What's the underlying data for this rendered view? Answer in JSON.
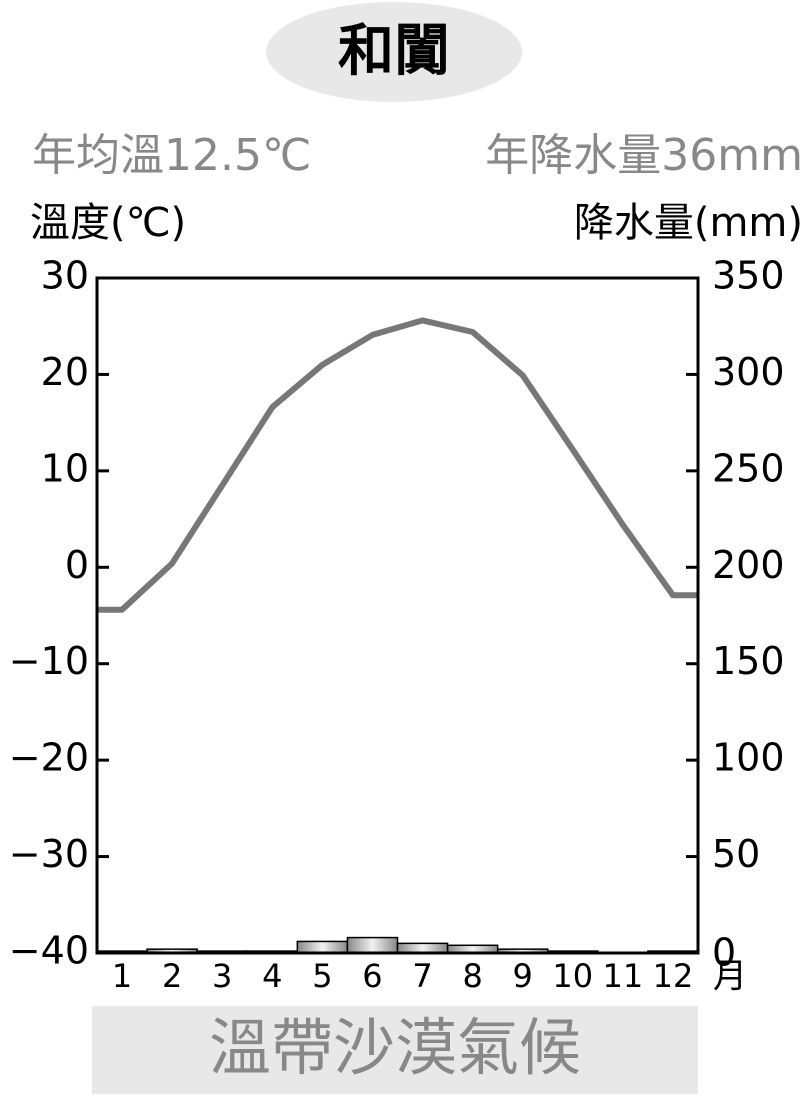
{
  "chart_data": {
    "type": "climate",
    "title": "和闐",
    "annotations": [
      "年均溫12.5℃",
      "年降水量36mm"
    ],
    "y_label": "溫度(℃)",
    "y2_label": "降水量(mm)",
    "x_unit": "月",
    "footer": "溫帶沙漠氣候",
    "categories": [
      "1",
      "2",
      "3",
      "4",
      "5",
      "6",
      "7",
      "8",
      "9",
      "10",
      "11",
      "12"
    ],
    "series": [
      {
        "name": "溫度",
        "type": "line",
        "color": "#777777",
        "values": [
          -4.4,
          0.4,
          8.5,
          16.6,
          21.0,
          24.1,
          25.6,
          24.4,
          19.9,
          12.2,
          4.4,
          -2.9
        ]
      },
      {
        "name": "降水量",
        "type": "bar",
        "axis": "y2",
        "color": "#bbbbbb",
        "values": [
          1,
          2,
          1,
          1,
          6,
          8,
          5,
          4,
          2,
          1,
          0,
          1
        ]
      }
    ],
    "ylim": [
      -40,
      30
    ],
    "yticks": [
      {
        "value": -40,
        "label": "−40"
      },
      {
        "value": -30,
        "label": "−30"
      },
      {
        "value": -20,
        "label": "−20"
      },
      {
        "value": -10,
        "label": "−10"
      },
      0,
      10,
      20,
      30
    ],
    "y2lim": [
      0,
      350
    ],
    "y2ticks": [
      0,
      50,
      100,
      150,
      200,
      250,
      300,
      350
    ]
  }
}
